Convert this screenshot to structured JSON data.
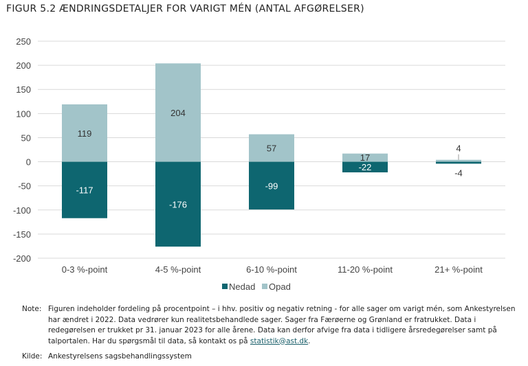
{
  "title": "FIGUR 5.2 ÆNDRINGSDETALJER FOR VARIGT MÉN (ANTAL AFGØRELSER)",
  "chart_data": {
    "type": "bar",
    "stacked": true,
    "categories": [
      "0-3 %-point",
      "4-5 %-point",
      "6-10 %-point",
      "11-20 %-point",
      "21+ %-point"
    ],
    "series": [
      {
        "name": "Nedad",
        "values": [
          -117,
          -176,
          -99,
          -22,
          -4
        ],
        "color": "#0e6670"
      },
      {
        "name": "Opad",
        "values": [
          119,
          204,
          57,
          17,
          4
        ],
        "color": "#a2c4c9"
      }
    ],
    "ylim": [
      -200,
      250
    ],
    "yticks": [
      250,
      200,
      150,
      100,
      50,
      0,
      -50,
      -100,
      -150,
      -200
    ],
    "grid": true,
    "legend": "bottom"
  },
  "note": {
    "label": "Note:",
    "text": "Figuren indeholder fordeling på procentpoint – i hhv. positiv og negativ retning - for alle sager om varigt mén, som Ankestyrelsen har ændret i 2022. Data vedrører kun realitetsbehandlede sager. Sager fra Færøerne og Grønland er fratrukket. Data i redegørelsen er trukket pr 31. januar 2023 for alle årene. Data kan derfor afvige fra data i tidligere årsredegørelser samt på talportalen. Har du spørgsmål til data, så kontakt os på ",
    "link": "statistik@ast.dk",
    "end": "."
  },
  "source": {
    "label": "Kilde:",
    "text": "Ankestyrelsens sagsbehandlingssystem"
  }
}
